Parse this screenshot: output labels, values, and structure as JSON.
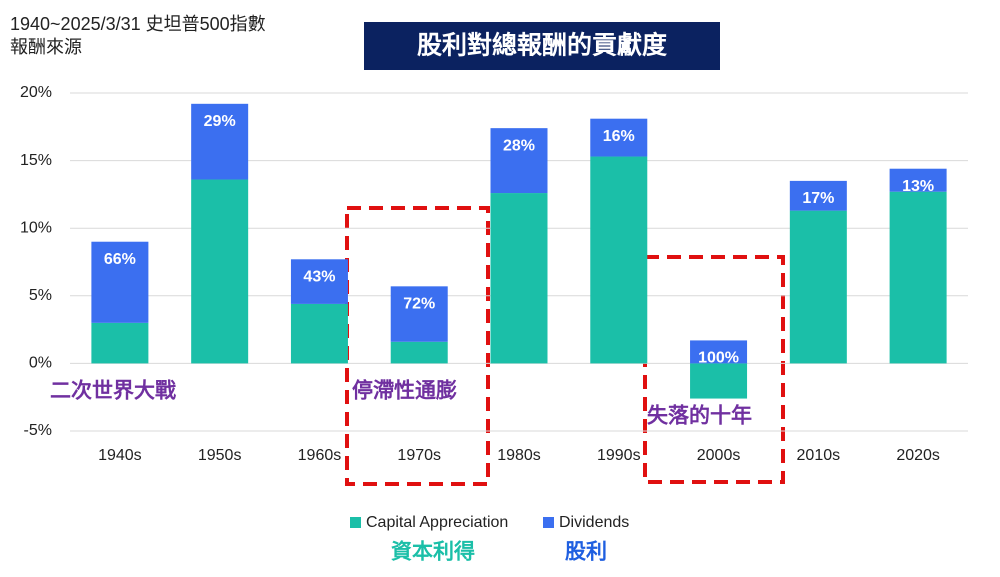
{
  "chart_data": {
    "type": "bar",
    "stacked": true,
    "title": "1940~2025/3/31 史坦普500指數",
    "subtitle": "報酬來源",
    "banner": "股利對總報酬的貢獻度",
    "categories": [
      "1940s",
      "1950s",
      "1960s",
      "1970s",
      "1980s",
      "1990s",
      "2000s",
      "2010s",
      "2020s"
    ],
    "series": [
      {
        "name": "Capital Appreciation",
        "color": "#1bbfa8",
        "values": [
          3.0,
          13.6,
          4.4,
          1.6,
          12.6,
          15.3,
          -2.6,
          11.3,
          12.7
        ]
      },
      {
        "name": "Dividends",
        "color": "#3b6ff0",
        "values": [
          6.0,
          5.6,
          3.3,
          4.1,
          4.8,
          2.8,
          1.7,
          2.2,
          1.7
        ]
      }
    ],
    "dividend_share": [
      "66%",
      "29%",
      "43%",
      "72%",
      "28%",
      "16%",
      "100%",
      "17%",
      "13%"
    ],
    "legend_chinese": [
      "資本利得",
      "股利"
    ],
    "annotations": [
      "二次世界大戰",
      "停滯性通膨",
      "失落的十年"
    ],
    "ylim": [
      -5,
      20
    ],
    "yticks": [
      {
        "value": -5,
        "label": "-5%"
      },
      {
        "value": 0,
        "label": "0%"
      },
      {
        "value": 5,
        "label": "5%"
      },
      {
        "value": 10,
        "label": "10%"
      },
      {
        "value": 15,
        "label": "15%"
      },
      {
        "value": 20,
        "label": "20%"
      }
    ],
    "grid": true
  }
}
